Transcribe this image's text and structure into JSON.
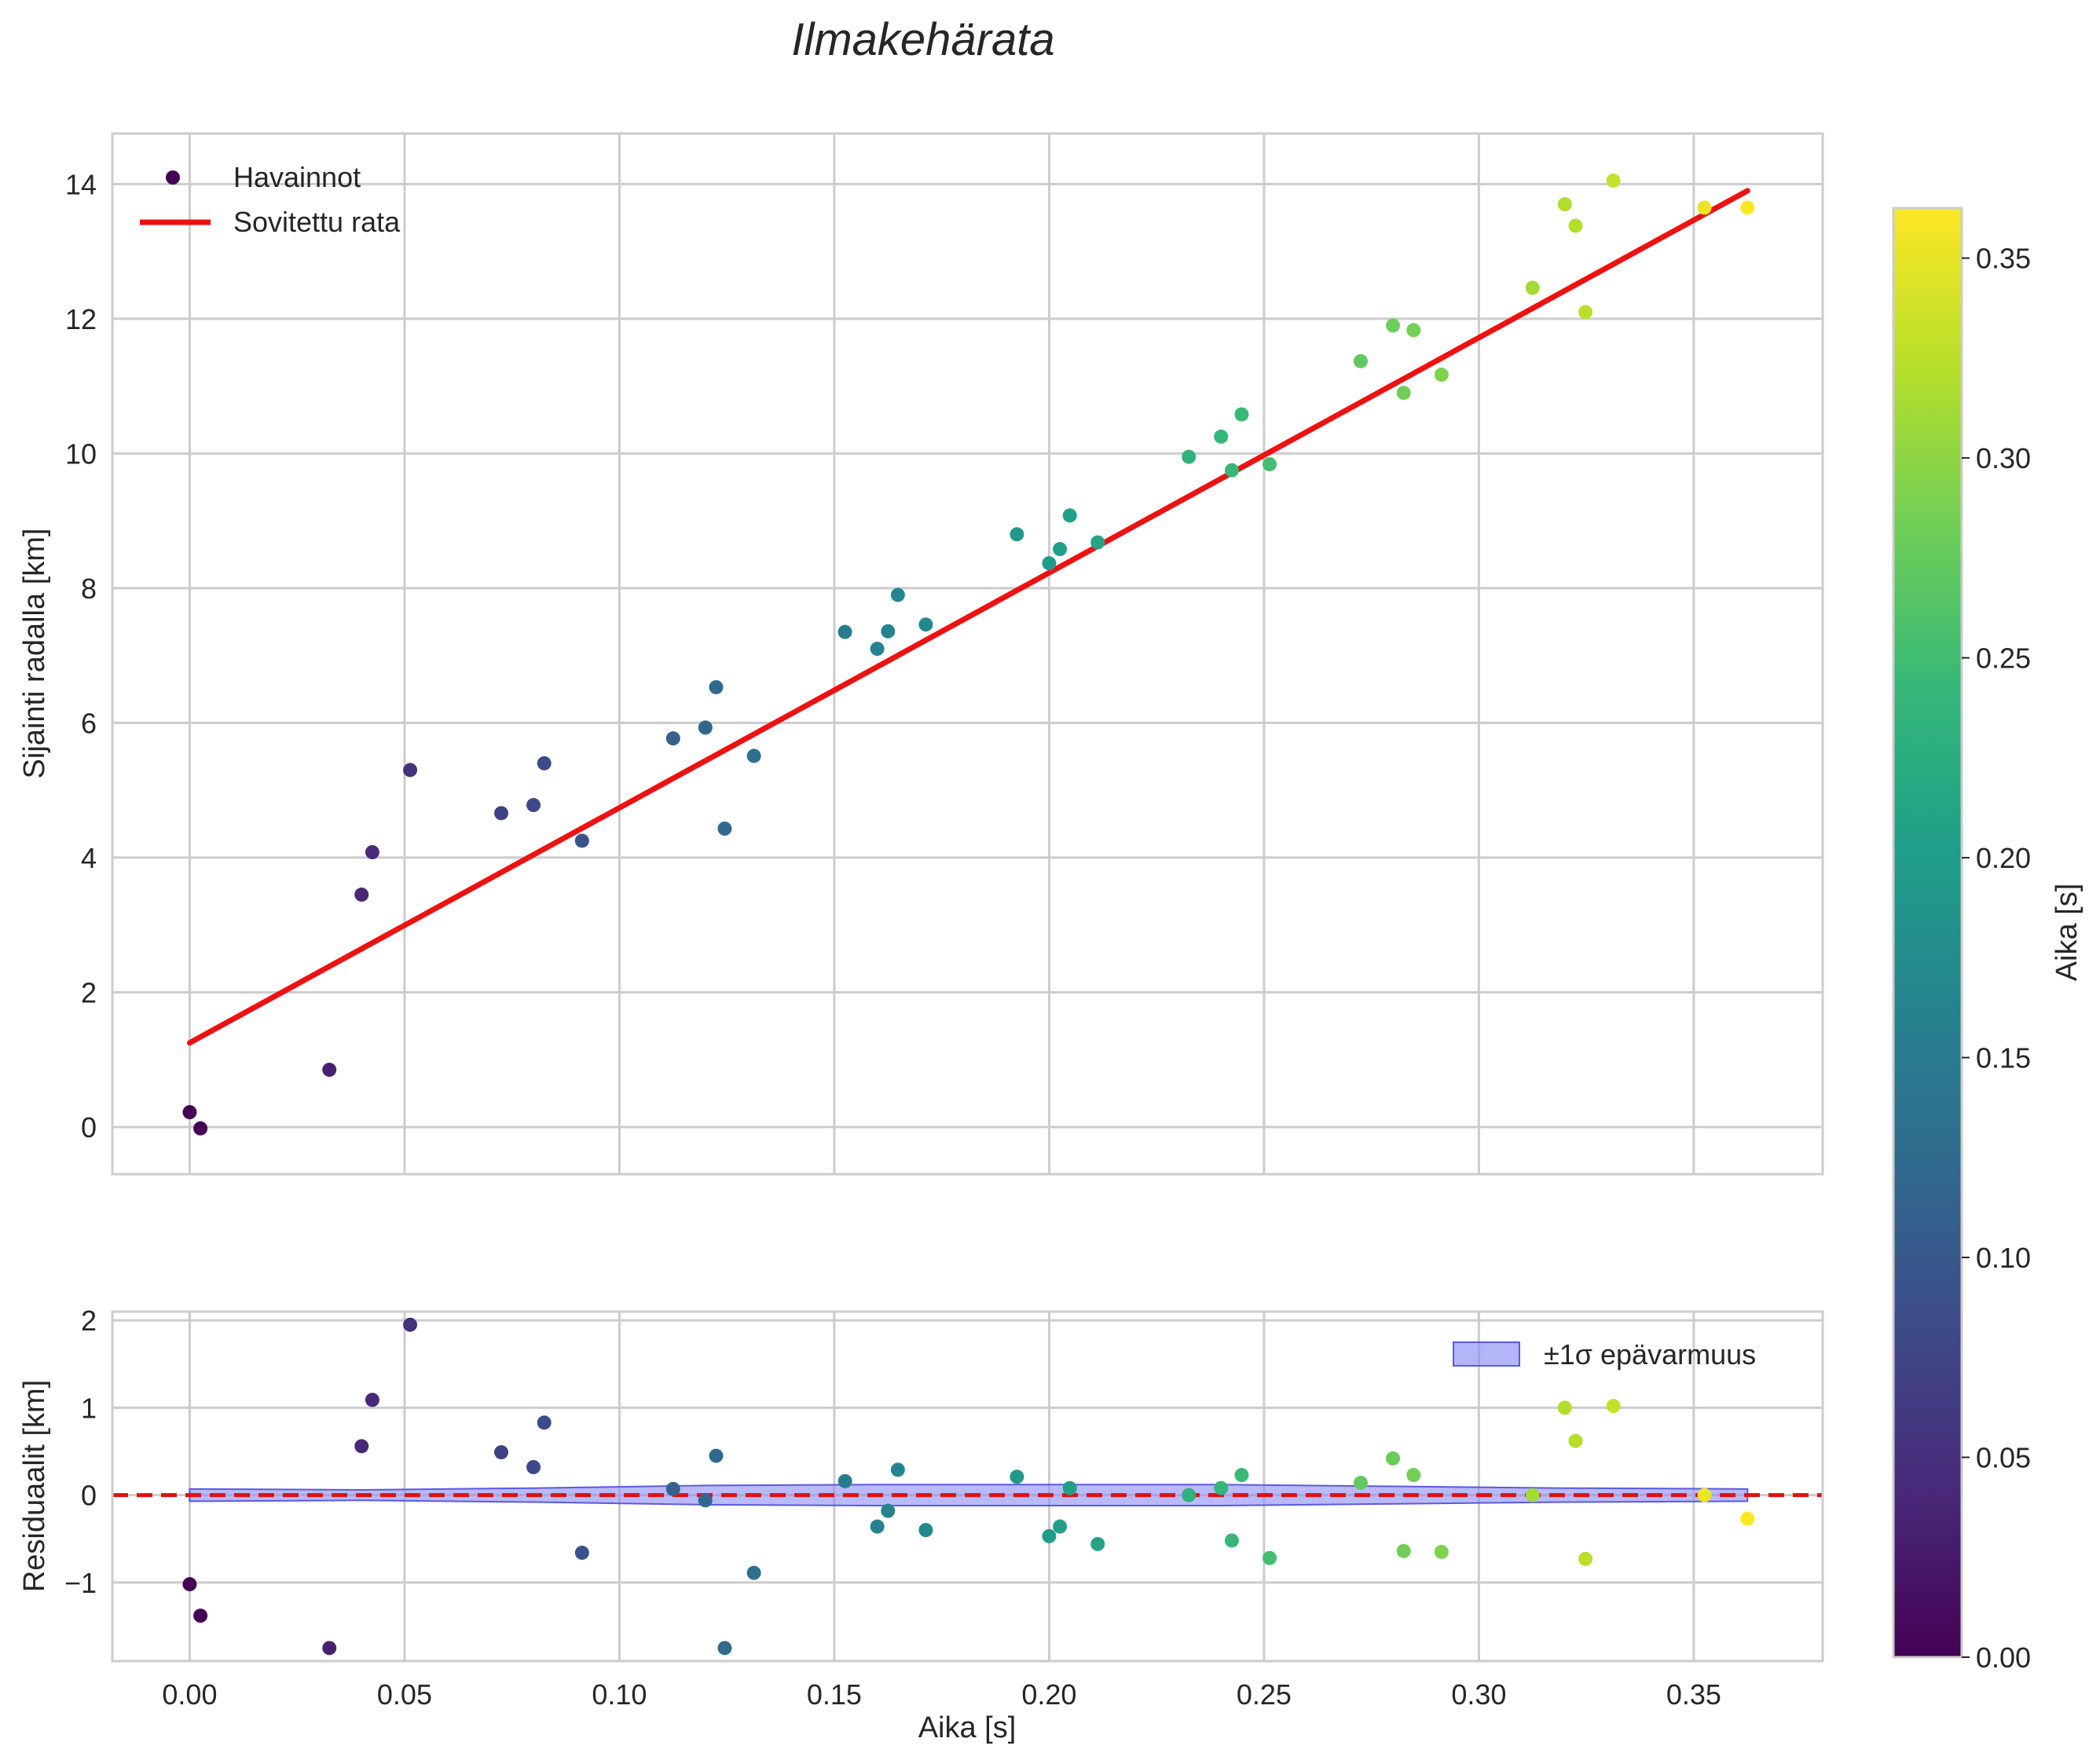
{
  "chart_data": {
    "title": "Ilmakehärata",
    "colors": {
      "fit_line": "#ee1111",
      "band_fill": "#8c8cf5",
      "band_edge": "#5a5ae0",
      "zero_line": "#dd1111",
      "grid": "#cccccc",
      "frame": "#cccccc"
    },
    "colormap": [
      "#440154",
      "#482878",
      "#3e4989",
      "#31688e",
      "#26828e",
      "#1f9e89",
      "#35b779",
      "#6ece58",
      "#b5de2b",
      "#fde725"
    ],
    "main": {
      "type": "scatter",
      "ylabel": "Sijainti radalla [km]",
      "ylim": [
        -0.7,
        14.75
      ],
      "yticks": [
        0,
        2,
        4,
        6,
        8,
        10,
        12,
        14
      ],
      "ytick_labels": [
        "0",
        "2",
        "4",
        "6",
        "8",
        "10",
        "12",
        "14"
      ],
      "legend": {
        "location": "upper left",
        "entries": [
          "Havainnot",
          "Sovitettu rata"
        ]
      },
      "fit_line": {
        "label": "Sovitettu rata",
        "x": [
          0.0,
          0.3625
        ],
        "y": [
          1.25,
          13.9
        ]
      },
      "observations": {
        "label": "Havainnot",
        "x": [
          0.0,
          0.0025,
          0.0325,
          0.04,
          0.0425,
          0.0513,
          0.0725,
          0.08,
          0.0825,
          0.0913,
          0.1125,
          0.12,
          0.1225,
          0.1245,
          0.1313,
          0.1525,
          0.16,
          0.1625,
          0.1648,
          0.1713,
          0.1925,
          0.2,
          0.2025,
          0.2048,
          0.2113,
          0.2325,
          0.24,
          0.2425,
          0.2448,
          0.2513,
          0.2725,
          0.28,
          0.2825,
          0.2848,
          0.2913,
          0.3125,
          0.32,
          0.3225,
          0.3248,
          0.3313,
          0.3525,
          0.3625
        ],
        "y": [
          0.22,
          -0.02,
          0.85,
          3.45,
          4.08,
          5.3,
          4.66,
          4.78,
          5.4,
          4.25,
          5.77,
          5.93,
          6.53,
          4.43,
          5.51,
          7.35,
          7.1,
          7.36,
          7.9,
          7.46,
          8.8,
          8.37,
          8.58,
          9.08,
          8.68,
          9.95,
          10.25,
          9.75,
          10.58,
          9.84,
          11.37,
          11.9,
          10.9,
          11.83,
          11.17,
          12.46,
          13.7,
          13.38,
          12.1,
          14.05,
          13.65,
          13.65
        ],
        "color_value": [
          0.0,
          0.0025,
          0.0325,
          0.04,
          0.0425,
          0.0513,
          0.0725,
          0.08,
          0.0825,
          0.0913,
          0.1125,
          0.12,
          0.1225,
          0.1245,
          0.1313,
          0.1525,
          0.16,
          0.1625,
          0.1648,
          0.1713,
          0.1925,
          0.2,
          0.2025,
          0.2048,
          0.2113,
          0.2325,
          0.24,
          0.2425,
          0.2448,
          0.2513,
          0.2725,
          0.28,
          0.2825,
          0.2848,
          0.2913,
          0.3125,
          0.32,
          0.3225,
          0.3248,
          0.3313,
          0.3525,
          0.3625
        ]
      }
    },
    "residual": {
      "type": "scatter",
      "ylabel": "Residuaalit [km]",
      "xlabel": "Aika [s]",
      "xlim": [
        -0.018,
        0.38
      ],
      "ylim": [
        -1.9,
        2.1
      ],
      "xticks": [
        0.0,
        0.05,
        0.1,
        0.15,
        0.2,
        0.25,
        0.3,
        0.35
      ],
      "xtick_labels": [
        "0.00",
        "0.05",
        "0.10",
        "0.15",
        "0.20",
        "0.25",
        "0.30",
        "0.35"
      ],
      "yticks": [
        -1,
        0,
        1,
        2
      ],
      "ytick_labels": [
        "−1",
        "0",
        "1",
        "2"
      ],
      "legend": {
        "location": "upper right",
        "entries": [
          "±1σ epävarmuus"
        ]
      },
      "band": {
        "label": "±1σ epävarmuus",
        "x": [
          0.0,
          0.04,
          0.08,
          0.12,
          0.16,
          0.2,
          0.24,
          0.28,
          0.32,
          0.3625
        ],
        "half_width": [
          0.07,
          0.06,
          0.08,
          0.11,
          0.12,
          0.12,
          0.12,
          0.1,
          0.08,
          0.07
        ]
      },
      "zero_line": 0,
      "y": [
        -1.02,
        -1.38,
        -1.75,
        0.56,
        1.09,
        1.95,
        0.49,
        0.32,
        0.83,
        -0.66,
        0.07,
        -0.06,
        0.45,
        -1.75,
        -0.89,
        0.16,
        -0.36,
        -0.18,
        0.29,
        -0.4,
        0.21,
        -0.47,
        -0.36,
        0.08,
        -0.56,
        0.0,
        0.08,
        -0.52,
        0.23,
        -0.72,
        0.14,
        0.42,
        -0.64,
        0.23,
        -0.65,
        0.0,
        1.0,
        0.62,
        -0.73,
        1.02,
        0.0,
        -0.27
      ]
    },
    "colorbar": {
      "label": "Aika [s]",
      "range": [
        0.0,
        0.3625
      ],
      "ticks": [
        0.0,
        0.05,
        0.1,
        0.15,
        0.2,
        0.25,
        0.3,
        0.35
      ],
      "tick_labels": [
        "0.00",
        "0.05",
        "0.10",
        "0.15",
        "0.20",
        "0.25",
        "0.30",
        "0.35"
      ]
    }
  }
}
